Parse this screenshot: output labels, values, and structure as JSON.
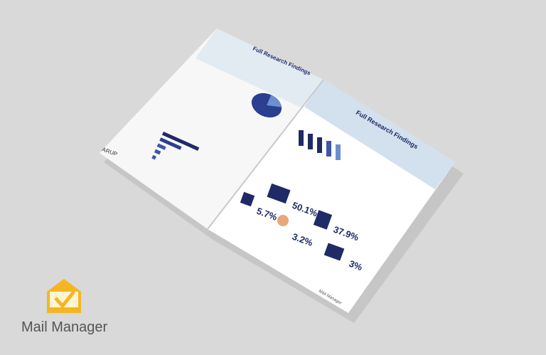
{
  "left_page": {
    "heading": "Full Research Findings",
    "brand": "ARUP"
  },
  "right_page": {
    "heading": "Full Research Findings",
    "stats": [
      "50.1%",
      "5.7%",
      "37.9%",
      "3.2%",
      "3%"
    ],
    "footer_brand": "Mail Manager"
  },
  "logo": {
    "label": "Mail Manager"
  }
}
